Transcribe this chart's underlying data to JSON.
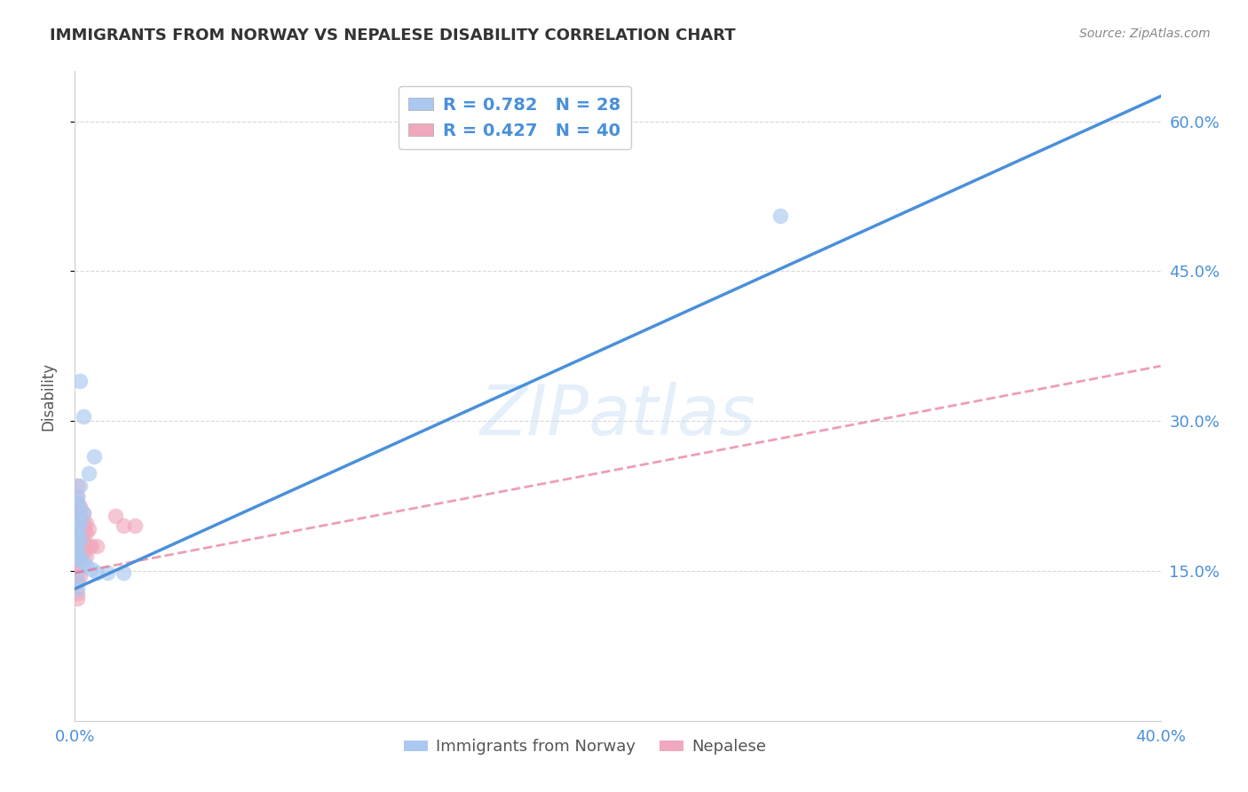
{
  "title": "IMMIGRANTS FROM NORWAY VS NEPALESE DISABILITY CORRELATION CHART",
  "source": "Source: ZipAtlas.com",
  "ylabel": "Disability",
  "watermark": "ZIPatlas",
  "legend_top": [
    {
      "label": "R = 0.782   N = 28",
      "patch_color": "#aac8f0",
      "text_color": "#4a90d9"
    },
    {
      "label": "R = 0.427   N = 40",
      "patch_color": "#f0a8bc",
      "text_color": "#4a90d9"
    }
  ],
  "legend_bottom": [
    {
      "label": "Immigrants from Norway",
      "patch_color": "#aac8f0"
    },
    {
      "label": "Nepalese",
      "patch_color": "#f0a8bc"
    }
  ],
  "xlim": [
    0.0,
    0.4
  ],
  "ylim": [
    0.0,
    0.65
  ],
  "yticks": [
    0.15,
    0.3,
    0.45,
    0.6
  ],
  "ytick_labels": [
    "15.0%",
    "30.0%",
    "45.0%",
    "60.0%"
  ],
  "xticks": [
    0.0,
    0.1,
    0.2,
    0.3,
    0.4
  ],
  "xtick_labels": [
    "0.0%",
    "",
    "",
    "",
    "40.0%"
  ],
  "background_color": "#ffffff",
  "grid_color": "#d8d8d8",
  "norway_scatter_x": [
    0.003,
    0.007,
    0.005,
    0.002,
    0.001,
    0.001,
    0.002,
    0.003,
    0.001,
    0.002,
    0.001,
    0.001,
    0.002,
    0.001,
    0.001,
    0.001,
    0.001,
    0.002,
    0.003,
    0.004,
    0.006,
    0.008,
    0.012,
    0.018,
    0.001,
    0.001,
    0.26,
    0.002
  ],
  "norway_scatter_y": [
    0.305,
    0.265,
    0.248,
    0.235,
    0.225,
    0.218,
    0.212,
    0.208,
    0.202,
    0.198,
    0.192,
    0.188,
    0.182,
    0.178,
    0.172,
    0.168,
    0.165,
    0.162,
    0.158,
    0.155,
    0.152,
    0.148,
    0.148,
    0.148,
    0.142,
    0.132,
    0.505,
    0.34
  ],
  "nepal_scatter_x": [
    0.001,
    0.001,
    0.001,
    0.001,
    0.001,
    0.001,
    0.001,
    0.001,
    0.001,
    0.001,
    0.001,
    0.001,
    0.002,
    0.002,
    0.002,
    0.002,
    0.002,
    0.002,
    0.002,
    0.003,
    0.003,
    0.003,
    0.003,
    0.003,
    0.004,
    0.004,
    0.004,
    0.005,
    0.005,
    0.006,
    0.008,
    0.015,
    0.018,
    0.022,
    0.001,
    0.001,
    0.001,
    0.002,
    0.001,
    0.001
  ],
  "nepal_scatter_y": [
    0.235,
    0.225,
    0.215,
    0.205,
    0.198,
    0.192,
    0.188,
    0.182,
    0.178,
    0.172,
    0.168,
    0.162,
    0.215,
    0.205,
    0.195,
    0.185,
    0.178,
    0.172,
    0.165,
    0.208,
    0.198,
    0.188,
    0.178,
    0.168,
    0.198,
    0.188,
    0.165,
    0.192,
    0.175,
    0.175,
    0.175,
    0.205,
    0.195,
    0.195,
    0.155,
    0.148,
    0.138,
    0.145,
    0.122,
    0.128
  ],
  "norway_line_x": [
    0.0,
    0.4
  ],
  "norway_line_y": [
    0.132,
    0.625
  ],
  "nepal_line_x": [
    0.0,
    0.4
  ],
  "nepal_line_y": [
    0.148,
    0.355
  ],
  "norway_line_color": "#4a90d9",
  "nepal_line_color": "#e06080",
  "nepal_line_style": "--",
  "norway_scatter_color": "#aac8f0",
  "nepal_scatter_color": "#f0a8bc",
  "scatter_size": 160,
  "scatter_alpha": 0.65,
  "title_fontsize": 13,
  "tick_color": "#4a90d9",
  "ylabel_color": "#555555",
  "source_color": "#888888",
  "title_color": "#333333"
}
